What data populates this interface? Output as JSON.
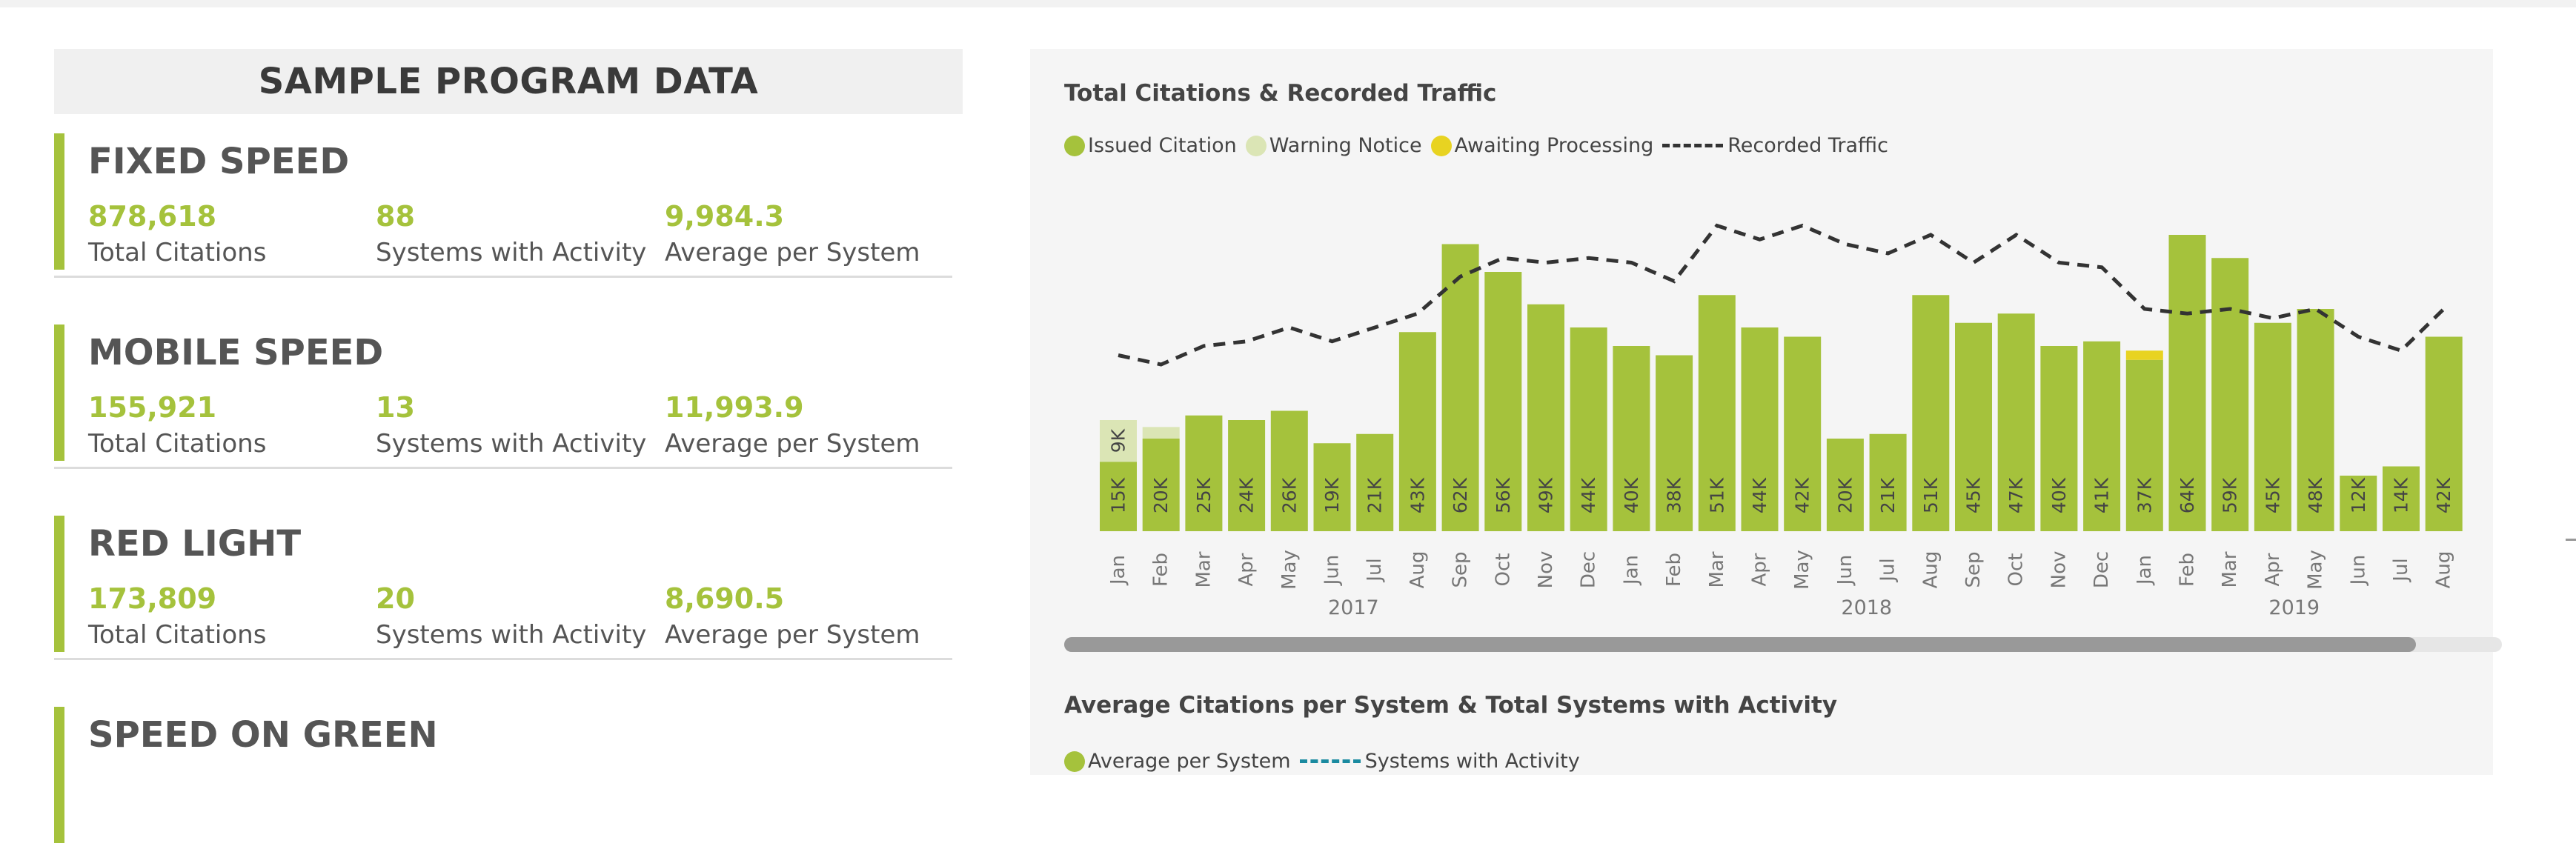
{
  "colors": {
    "accent": "#a5c23c",
    "warning": "#dbe5b5",
    "awaiting": "#e8d321",
    "line": "#333333",
    "systems_line": "#1a8aa0"
  },
  "left_panel": {
    "title": "SAMPLE PROGRAM DATA",
    "sections": [
      {
        "title": "FIXED SPEED",
        "metrics": [
          {
            "value": "878,618",
            "label": "Total Citations"
          },
          {
            "value": "88",
            "label": "Systems with Activity"
          },
          {
            "value": "9,984.3",
            "label": "Average per System"
          }
        ]
      },
      {
        "title": "MOBILE SPEED",
        "metrics": [
          {
            "value": "155,921",
            "label": "Total Citations"
          },
          {
            "value": "13",
            "label": "Systems with Activity"
          },
          {
            "value": "11,993.9",
            "label": "Average per System"
          }
        ]
      },
      {
        "title": "RED LIGHT",
        "metrics": [
          {
            "value": "173,809",
            "label": "Total Citations"
          },
          {
            "value": "20",
            "label": "Systems with Activity"
          },
          {
            "value": "8,690.5",
            "label": "Average per System"
          }
        ]
      },
      {
        "title": "SPEED ON GREEN",
        "metrics": []
      }
    ]
  },
  "chart_card": {
    "title": "Total Citations & Recorded Traffic",
    "legend": [
      {
        "label": "Issued Citation",
        "icon": "dot",
        "color": "#a5c23c"
      },
      {
        "label": "Warning Notice",
        "icon": "dot",
        "color": "#dbe5b5"
      },
      {
        "label": "Awaiting Processing",
        "icon": "dot",
        "color": "#e8d321"
      },
      {
        "label": "Recorded Traffic",
        "icon": "dashed-line",
        "color": "#333333"
      }
    ],
    "second_title": "Average Citations per System & Total Systems with Activity",
    "second_legend": [
      {
        "label": "Average per System",
        "icon": "dot",
        "color": "#a5c23c"
      },
      {
        "label": "Systems with Activity",
        "icon": "dashed-line",
        "color": "#1a8aa0"
      }
    ],
    "scrollbar_visible_fraction": 0.94
  },
  "chart_data": {
    "type": "bar",
    "title": "Total Citations & Recorded Traffic",
    "categories": [
      "Jan",
      "Feb",
      "Mar",
      "Apr",
      "May",
      "Jun",
      "Jul",
      "Aug",
      "Sep",
      "Oct",
      "Nov",
      "Dec",
      "Jan",
      "Feb",
      "Mar",
      "Apr",
      "May",
      "Jun",
      "Jul",
      "Aug",
      "Sep",
      "Oct",
      "Nov",
      "Dec",
      "Jan",
      "Feb",
      "Mar",
      "Apr",
      "May",
      "Jun",
      "Jul",
      "Aug"
    ],
    "years": [
      {
        "label": "2017",
        "start": 0,
        "end": 11
      },
      {
        "label": "2018",
        "start": 12,
        "end": 23
      },
      {
        "label": "2019",
        "start": 24,
        "end": 31
      }
    ],
    "series": [
      {
        "name": "Issued Citation",
        "values": [
          15,
          20,
          25,
          24,
          26,
          19,
          21,
          43,
          62,
          56,
          49,
          44,
          40,
          38,
          51,
          44,
          42,
          20,
          21,
          51,
          45,
          47,
          40,
          41,
          37,
          64,
          59,
          45,
          48,
          12,
          14,
          42
        ],
        "labels": [
          "15K",
          "20K",
          "25K",
          "24K",
          "26K",
          "19K",
          "21K",
          "43K",
          "62K",
          "56K",
          "49K",
          "44K",
          "40K",
          "38K",
          "51K",
          "44K",
          "42K",
          "20K",
          "21K",
          "51K",
          "45K",
          "47K",
          "40K",
          "41K",
          "37K",
          "64K",
          "59K",
          "45K",
          "48K",
          "12K",
          "14K",
          "42K"
        ]
      },
      {
        "name": "Warning Notice",
        "values": [
          9,
          2.5,
          0,
          0,
          0,
          0,
          0,
          0,
          0,
          0,
          0,
          0,
          0,
          0,
          0,
          0,
          0,
          0,
          0,
          0,
          0,
          0,
          0,
          0,
          0,
          0,
          0,
          0,
          0,
          0,
          0,
          0
        ],
        "labels": [
          "9K",
          "",
          "",
          "",
          "",
          "",
          "",
          "",
          "",
          "",
          "",
          "",
          "",
          "",
          "",
          "",
          "",
          "",
          "",
          "",
          "",
          "",
          "",
          "",
          "",
          "",
          "",
          "",
          "",
          "",
          "",
          ""
        ]
      },
      {
        "name": "Awaiting Processing",
        "values": [
          0,
          0,
          0,
          0,
          0,
          0,
          0,
          0,
          0,
          0,
          0,
          0,
          0,
          0,
          0,
          0,
          0,
          0,
          0,
          0,
          0,
          0,
          0,
          0,
          2,
          0,
          0,
          0,
          0,
          0,
          0,
          0
        ]
      },
      {
        "name": "Recorded Traffic",
        "type": "line",
        "values": [
          38,
          36,
          40,
          41,
          44,
          41,
          44,
          47,
          55,
          59,
          58,
          59,
          58,
          54,
          66,
          63,
          66,
          62,
          60,
          64,
          58,
          64,
          58,
          57,
          48,
          47,
          48,
          46,
          48,
          42,
          39,
          48
        ]
      }
    ],
    "ylim": [
      0,
      72
    ]
  }
}
